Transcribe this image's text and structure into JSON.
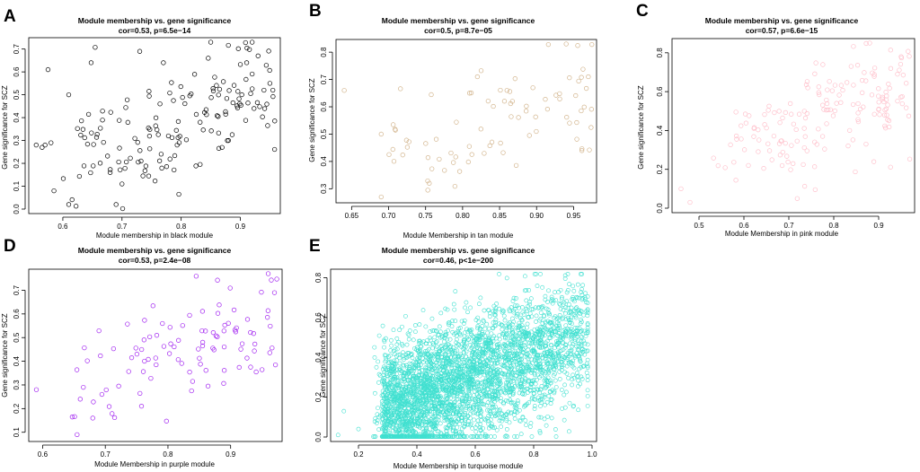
{
  "figure": {
    "panels": [
      {
        "letter": "A",
        "color": "#000000",
        "n_points": 150,
        "seed": 11
      },
      {
        "letter": "B",
        "color": "#d2b48c",
        "n_points": 80,
        "seed": 23
      },
      {
        "letter": "C",
        "color": "#ffc0cb",
        "n_points": 170,
        "seed": 37
      },
      {
        "letter": "D",
        "color": "#a020f0",
        "n_points": 100,
        "seed": 41
      },
      {
        "letter": "E",
        "color": "#40e0d0",
        "n_points": 3500,
        "seed": 53
      }
    ]
  },
  "chart_data": [
    {
      "type": "scatter",
      "title": "Module membership vs. gene significance",
      "subtitle": "cor=0.53, p=6.5e−14",
      "xlabel": "Module membership in black module",
      "ylabel": "Gene significance for SCZ",
      "xlim": [
        0.55,
        0.96
      ],
      "ylim": [
        0.0,
        0.73
      ],
      "xticks": [
        0.6,
        0.7,
        0.8,
        0.9
      ],
      "xtick_labels": [
        "0.6",
        "0.7",
        "0.8",
        "0.9"
      ],
      "yticks": [
        0.0,
        0.1,
        0.2,
        0.3,
        0.4,
        0.5,
        0.6,
        0.7
      ],
      "ytick_labels": [
        "0.0",
        "0.1",
        "0.2",
        "0.3",
        "0.4",
        "0.5",
        "0.6",
        "0.7"
      ],
      "correlation": 0.53,
      "points": [
        [
          0.555,
          0.28
        ],
        [
          0.565,
          0.27
        ],
        [
          0.57,
          0.28
        ],
        [
          0.575,
          0.61
        ],
        [
          0.58,
          0.29
        ],
        [
          0.585,
          0.08
        ],
        [
          0.61,
          0.02
        ],
        [
          0.61,
          0.5
        ],
        [
          0.69,
          0.02
        ],
        [
          0.7,
          0.11
        ],
        [
          0.73,
          0.69
        ],
        [
          0.77,
          0.64
        ],
        [
          0.85,
          0.73
        ],
        [
          0.92,
          0.73
        ],
        [
          0.93,
          0.67
        ],
        [
          0.94,
          0.52
        ],
        [
          0.95,
          0.55
        ],
        [
          0.955,
          0.52
        ],
        [
          0.88,
          0.3
        ],
        [
          0.68,
          0.16
        ]
      ],
      "n_points": 150
    },
    {
      "type": "scatter",
      "title": "Module membership vs. gene significance",
      "subtitle": "cor=0.5, p=8.7e−05",
      "xlabel": "Module Membership in tan module",
      "ylabel": "Gene significance for SCZ",
      "xlim": [
        0.635,
        0.975
      ],
      "ylim": [
        0.265,
        0.83
      ],
      "xticks": [
        0.65,
        0.7,
        0.75,
        0.8,
        0.85,
        0.9,
        0.95
      ],
      "xtick_labels": [
        "0.65",
        "0.70",
        "0.75",
        "0.80",
        "0.85",
        "0.90",
        "0.95"
      ],
      "yticks": [
        0.3,
        0.4,
        0.5,
        0.6,
        0.7,
        0.8
      ],
      "ytick_labels": [
        "0.3",
        "0.4",
        "0.5",
        "0.6",
        "0.7",
        "0.8"
      ],
      "correlation": 0.5,
      "points": [
        [
          0.64,
          0.66
        ],
        [
          0.69,
          0.27
        ],
        [
          0.69,
          0.5
        ],
        [
          0.755,
          0.32
        ],
        [
          0.94,
          0.83
        ],
        [
          0.97,
          0.71
        ],
        [
          0.82,
          0.71
        ],
        [
          0.86,
          0.66
        ]
      ],
      "n_points": 80
    },
    {
      "type": "scatter",
      "title": "Module membership vs. gene significance",
      "subtitle": "cor=0.57, p=6.6e−15",
      "xlabel": "Module Membership in pink module",
      "ylabel": "Gene significance for SCZ",
      "xlim": [
        0.45,
        0.97
      ],
      "ylim": [
        0.0,
        0.85
      ],
      "xticks": [
        0.5,
        0.6,
        0.7,
        0.8,
        0.9
      ],
      "xtick_labels": [
        "0.5",
        "0.6",
        "0.7",
        "0.8",
        "0.9"
      ],
      "yticks": [
        0.0,
        0.2,
        0.4,
        0.6,
        0.8
      ],
      "ytick_labels": [
        "0.0",
        "0.2",
        "0.4",
        "0.6",
        "0.8"
      ],
      "correlation": 0.57,
      "points": [
        [
          0.46,
          0.1
        ],
        [
          0.48,
          0.03
        ],
        [
          0.61,
          0.22
        ],
        [
          0.88,
          0.85
        ],
        [
          0.95,
          0.78
        ]
      ],
      "n_points": 170
    },
    {
      "type": "scatter",
      "title": "Module membership vs. gene significance",
      "subtitle": "cor=0.53, p=2.4e−08",
      "xlabel": "Module Membership in purple module",
      "ylabel": "Gene significance for SCZ",
      "xlim": [
        0.585,
        0.975
      ],
      "ylim": [
        0.08,
        0.77
      ],
      "xticks": [
        0.6,
        0.7,
        0.8,
        0.9
      ],
      "xtick_labels": [
        "0.6",
        "0.7",
        "0.8",
        "0.9"
      ],
      "yticks": [
        0.1,
        0.2,
        0.3,
        0.4,
        0.5,
        0.6,
        0.7
      ],
      "ytick_labels": [
        "0.1",
        "0.2",
        "0.3",
        "0.4",
        "0.5",
        "0.6",
        "0.7"
      ],
      "correlation": 0.53,
      "points": [
        [
          0.59,
          0.28
        ],
        [
          0.655,
          0.09
        ],
        [
          0.66,
          0.24
        ],
        [
          0.665,
          0.29
        ],
        [
          0.68,
          0.16
        ],
        [
          0.96,
          0.77
        ],
        [
          0.97,
          0.69
        ]
      ],
      "n_points": 100
    },
    {
      "type": "scatter",
      "title": "Module membership vs. gene significance",
      "subtitle": "cor=0.46, p<1e−200",
      "xlabel": "Module Membership in turquoise module",
      "ylabel": "Gene significance for SCZ",
      "xlim": [
        0.12,
        1.0
      ],
      "ylim": [
        0.0,
        0.82
      ],
      "xticks": [
        0.2,
        0.4,
        0.6,
        0.8,
        1.0
      ],
      "xtick_labels": [
        "0.2",
        "0.4",
        "0.6",
        "0.8",
        "1.0"
      ],
      "yticks": [
        0.0,
        0.2,
        0.4,
        0.6,
        0.8
      ],
      "ytick_labels": [
        "0.0",
        "0.2",
        "0.4",
        "0.6",
        "0.8"
      ],
      "correlation": 0.46,
      "points": [
        [
          0.13,
          0.01
        ],
        [
          0.15,
          0.13
        ],
        [
          0.2,
          0.04
        ]
      ],
      "n_points": 3500
    }
  ]
}
